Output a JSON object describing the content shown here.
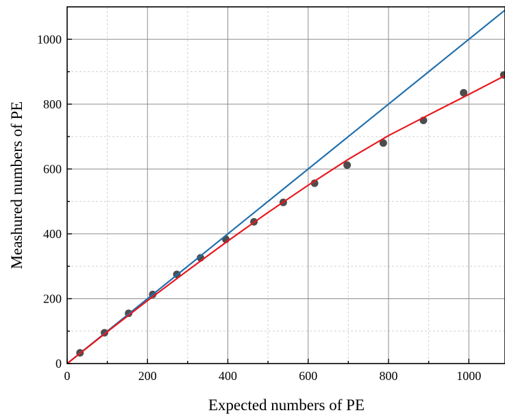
{
  "chart_data": {
    "type": "scatter",
    "title": "",
    "xlabel": "Expected numbers of PE",
    "ylabel": "Meashured numbers of PE",
    "xlim": [
      0,
      1090
    ],
    "ylim": [
      0,
      1100
    ],
    "x_ticks": [
      0,
      200,
      400,
      600,
      800,
      1000
    ],
    "y_ticks": [
      0,
      200,
      400,
      600,
      800,
      1000
    ],
    "grid": true,
    "series": [
      {
        "kind": "points",
        "color": "#4d4d4d",
        "points": [
          [
            32,
            33
          ],
          [
            93,
            95
          ],
          [
            153,
            155
          ],
          [
            213,
            213
          ],
          [
            273,
            275
          ],
          [
            332,
            326
          ],
          [
            395,
            383
          ],
          [
            465,
            437
          ],
          [
            538,
            497
          ],
          [
            616,
            556
          ],
          [
            697,
            612
          ],
          [
            787,
            680
          ],
          [
            887,
            750
          ],
          [
            987,
            835
          ],
          [
            1087,
            890
          ]
        ]
      },
      {
        "kind": "line",
        "color": "#1f6fad",
        "points": [
          [
            0,
            0
          ],
          [
            1090,
            1090
          ]
        ]
      },
      {
        "kind": "line",
        "color": "#e8181e",
        "points": [
          [
            0,
            0
          ],
          [
            100,
            98
          ],
          [
            200,
            194
          ],
          [
            300,
            287
          ],
          [
            400,
            378
          ],
          [
            500,
            466
          ],
          [
            600,
            550
          ],
          [
            700,
            630
          ],
          [
            800,
            703
          ],
          [
            900,
            767
          ],
          [
            1000,
            830
          ],
          [
            1090,
            888
          ]
        ]
      }
    ]
  }
}
